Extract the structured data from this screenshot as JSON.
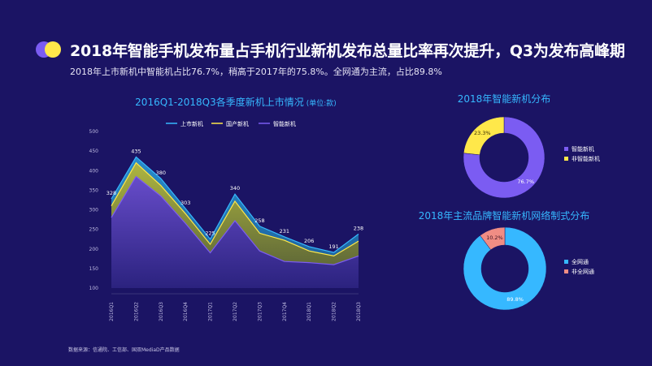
{
  "header": {
    "title": "2018年智能手机发布量占手机行业新机发布总量比率再次提升，Q3为发布高峰期",
    "subtitle": "2018年上市新机中智能机占比76.7%，稍高于2017年的75.8%。全网通为主流，占比89.8%"
  },
  "source": "数据来源：信通院、工信部、国双MediaD产品数据",
  "colors": {
    "background": "#1b1464",
    "accent_blue": "#36b8ff",
    "yellow": "#ffe84a",
    "purple": "#7b5cf2",
    "pink": "#f08d84"
  },
  "chart_data": [
    {
      "type": "area",
      "title": "2016Q1-2018Q3各季度新机上市情况",
      "unit_label": "(单位:款)",
      "categories": [
        "2016Q1",
        "2016Q2",
        "2016Q3",
        "2016Q4",
        "2017Q1",
        "2017Q2",
        "2017Q3",
        "2017Q4",
        "2018Q1",
        "2018Q2",
        "2018Q3"
      ],
      "y_ticks": [
        100,
        150,
        200,
        250,
        300,
        350,
        400,
        450,
        500
      ],
      "ylim": [
        100,
        500
      ],
      "legend": [
        "上市新机",
        "国产新机",
        "智能新机"
      ],
      "series": [
        {
          "name": "上市新机",
          "color": "#36b8ff",
          "values": [
            328,
            435,
            380,
            303,
            225,
            340,
            258,
            231,
            206,
            191,
            238
          ],
          "labels": [
            "328",
            "435",
            "380",
            "303",
            "225",
            "340",
            "258",
            "231",
            "206",
            "191",
            "238"
          ]
        },
        {
          "name": "国产新机",
          "color": "#ffe84a",
          "values": [
            310,
            420,
            362,
            290,
            212,
            322,
            240,
            222,
            195,
            182,
            220
          ]
        },
        {
          "name": "智能新机",
          "color": "#7b5cf2",
          "values": [
            280,
            385,
            335,
            265,
            190,
            272,
            195,
            168,
            165,
            160,
            182
          ]
        }
      ]
    },
    {
      "type": "pie",
      "title": "2018年智能新机分布",
      "slices": [
        {
          "name": "智能新机",
          "value": 76.7,
          "label": "76.7%",
          "color": "#7b5cf2"
        },
        {
          "name": "非智能新机",
          "value": 23.3,
          "label": "23.3%",
          "color": "#ffe84a"
        }
      ]
    },
    {
      "type": "pie",
      "title": "2018年主流品牌智能新机网络制式分布",
      "slices": [
        {
          "name": "全网通",
          "value": 89.8,
          "label": "89.8%",
          "color": "#36b8ff"
        },
        {
          "name": "非全网通",
          "value": 10.2,
          "label": "10.2%",
          "color": "#f08d84"
        }
      ]
    }
  ]
}
